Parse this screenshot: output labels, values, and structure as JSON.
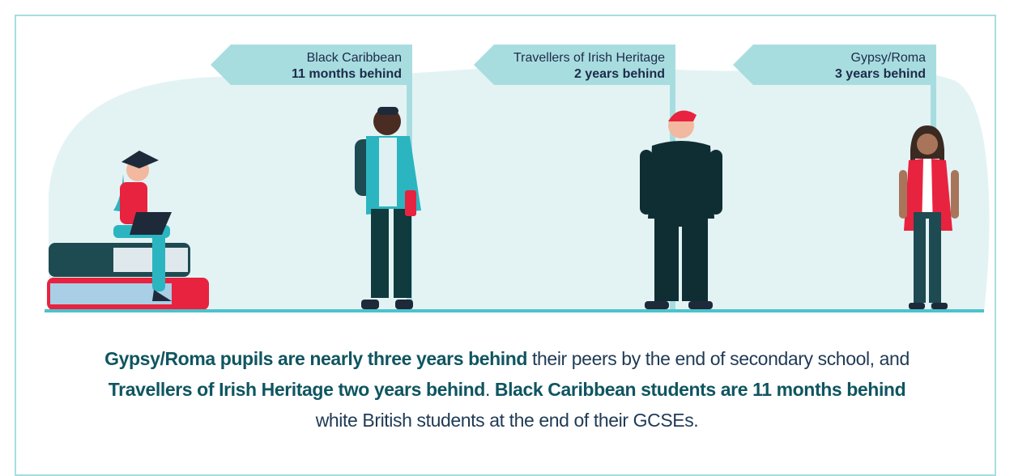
{
  "signs": [
    {
      "label": "Black Caribbean",
      "value": "11 months behind"
    },
    {
      "label": "Travellers of Irish Heritage",
      "value": "2 years behind"
    },
    {
      "label": "Gypsy/Roma",
      "value": "3 years behind"
    }
  ],
  "caption": [
    {
      "text": "Gypsy/Roma pupils are nearly three years behind",
      "bold": true
    },
    {
      "text": " their peers by the end of secondary school, and ",
      "bold": false
    },
    {
      "text": "Travellers of Irish Heritage two years behind",
      "bold": true
    },
    {
      "text": ". ",
      "bold": false
    },
    {
      "text": "Black Caribbean students are 11 months behind",
      "bold": true
    },
    {
      "text": " white British students at the end of their GCSEs.",
      "bold": false
    }
  ]
}
